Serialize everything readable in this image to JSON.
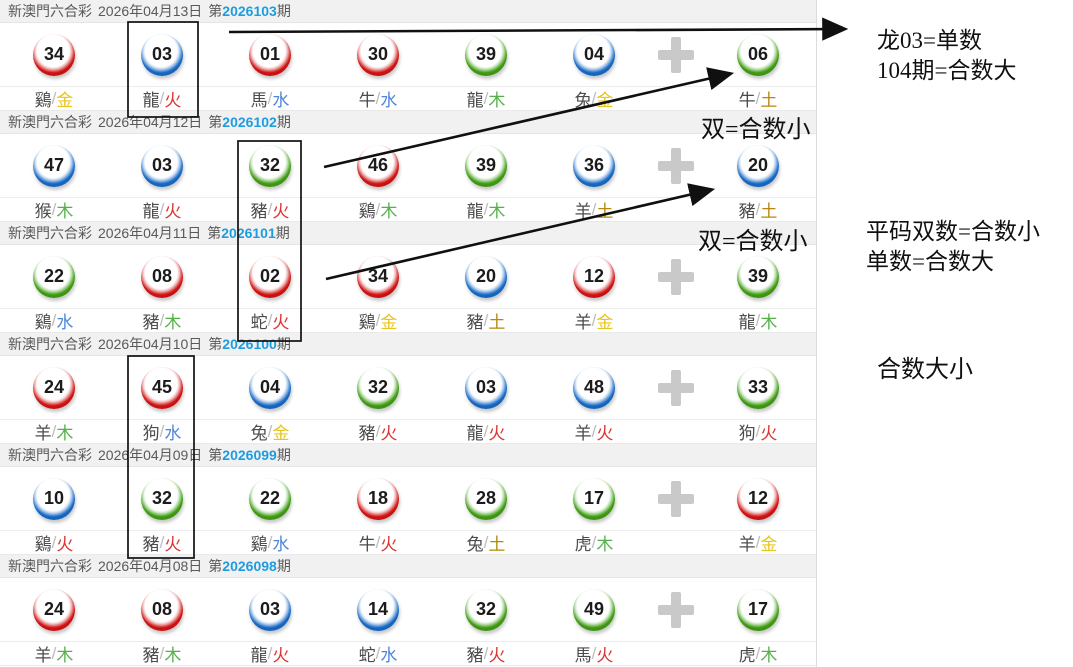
{
  "site": {
    "brand": "新澳門六合彩"
  },
  "labels": {
    "period_pre": "第",
    "period_post": "期",
    "separator": "/"
  },
  "icons": {
    "bonus_separator": "plus-icon"
  },
  "colors": {
    "ball_red": "#d01212",
    "ball_blue": "#1668c4",
    "ball_green": "#3f9a12",
    "period_link": "#1d9ce0",
    "element_gold": "#e8c51c",
    "element_wood": "#55b04b",
    "element_water": "#4f86db",
    "element_fire": "#dd3232",
    "element_earth": "#b8860b",
    "annotation_ink": "#101010"
  },
  "annotations": {
    "a1": "龙03=单数",
    "a2": "104期=合数大",
    "a3": "双=合数小",
    "a4": "双=合数小",
    "a5": "平码双数=合数小",
    "a6": "单数=合数大",
    "a7": "合数大小"
  },
  "draws": [
    {
      "title_prefix": "新澳門六合彩",
      "date": "2026年04月13日",
      "period": "2026103",
      "balls": [
        {
          "num": "34",
          "color": "red",
          "zodiac": "鷄",
          "element": "金"
        },
        {
          "num": "03",
          "color": "blue",
          "zodiac": "龍",
          "element": "火"
        },
        {
          "num": "01",
          "color": "red",
          "zodiac": "馬",
          "element": "水"
        },
        {
          "num": "30",
          "color": "red",
          "zodiac": "牛",
          "element": "水"
        },
        {
          "num": "39",
          "color": "green",
          "zodiac": "龍",
          "element": "木"
        },
        {
          "num": "04",
          "color": "blue",
          "zodiac": "兔",
          "element": "金"
        },
        {
          "num": "06",
          "color": "green",
          "zodiac": "牛",
          "element": "土"
        }
      ]
    },
    {
      "title_prefix": "新澳門六合彩",
      "date": "2026年04月12日",
      "period": "2026102",
      "balls": [
        {
          "num": "47",
          "color": "blue",
          "zodiac": "猴",
          "element": "木"
        },
        {
          "num": "03",
          "color": "blue",
          "zodiac": "龍",
          "element": "火"
        },
        {
          "num": "32",
          "color": "green",
          "zodiac": "豬",
          "element": "火"
        },
        {
          "num": "46",
          "color": "red",
          "zodiac": "鷄",
          "element": "木"
        },
        {
          "num": "39",
          "color": "green",
          "zodiac": "龍",
          "element": "木"
        },
        {
          "num": "36",
          "color": "blue",
          "zodiac": "羊",
          "element": "土"
        },
        {
          "num": "20",
          "color": "blue",
          "zodiac": "豬",
          "element": "土"
        }
      ]
    },
    {
      "title_prefix": "新澳門六合彩",
      "date": "2026年04月11日",
      "period": "2026101",
      "balls": [
        {
          "num": "22",
          "color": "green",
          "zodiac": "鷄",
          "element": "水"
        },
        {
          "num": "08",
          "color": "red",
          "zodiac": "豬",
          "element": "木"
        },
        {
          "num": "02",
          "color": "red",
          "zodiac": "蛇",
          "element": "火"
        },
        {
          "num": "34",
          "color": "red",
          "zodiac": "鷄",
          "element": "金"
        },
        {
          "num": "20",
          "color": "blue",
          "zodiac": "豬",
          "element": "土"
        },
        {
          "num": "12",
          "color": "red",
          "zodiac": "羊",
          "element": "金"
        },
        {
          "num": "39",
          "color": "green",
          "zodiac": "龍",
          "element": "木"
        }
      ]
    },
    {
      "title_prefix": "新澳門六合彩",
      "date": "2026年04月10日",
      "period": "2026100",
      "balls": [
        {
          "num": "24",
          "color": "red",
          "zodiac": "羊",
          "element": "木"
        },
        {
          "num": "45",
          "color": "red",
          "zodiac": "狗",
          "element": "水"
        },
        {
          "num": "04",
          "color": "blue",
          "zodiac": "兔",
          "element": "金"
        },
        {
          "num": "32",
          "color": "green",
          "zodiac": "豬",
          "element": "火"
        },
        {
          "num": "03",
          "color": "blue",
          "zodiac": "龍",
          "element": "火"
        },
        {
          "num": "48",
          "color": "blue",
          "zodiac": "羊",
          "element": "火"
        },
        {
          "num": "33",
          "color": "green",
          "zodiac": "狗",
          "element": "火"
        }
      ]
    },
    {
      "title_prefix": "新澳門六合彩",
      "date": "2026年04月09日",
      "period": "2026099",
      "balls": [
        {
          "num": "10",
          "color": "blue",
          "zodiac": "鷄",
          "element": "火"
        },
        {
          "num": "32",
          "color": "green",
          "zodiac": "豬",
          "element": "火"
        },
        {
          "num": "22",
          "color": "green",
          "zodiac": "鷄",
          "element": "水"
        },
        {
          "num": "18",
          "color": "red",
          "zodiac": "牛",
          "element": "火"
        },
        {
          "num": "28",
          "color": "green",
          "zodiac": "兔",
          "element": "土"
        },
        {
          "num": "17",
          "color": "green",
          "zodiac": "虎",
          "element": "木"
        },
        {
          "num": "12",
          "color": "red",
          "zodiac": "羊",
          "element": "金"
        }
      ]
    },
    {
      "title_prefix": "新澳門六合彩",
      "date": "2026年04月08日",
      "period": "2026098",
      "balls": [
        {
          "num": "24",
          "color": "red",
          "zodiac": "羊",
          "element": "木"
        },
        {
          "num": "08",
          "color": "red",
          "zodiac": "豬",
          "element": "木"
        },
        {
          "num": "03",
          "color": "blue",
          "zodiac": "龍",
          "element": "火"
        },
        {
          "num": "14",
          "color": "blue",
          "zodiac": "蛇",
          "element": "水"
        },
        {
          "num": "32",
          "color": "green",
          "zodiac": "豬",
          "element": "火"
        },
        {
          "num": "49",
          "color": "green",
          "zodiac": "馬",
          "element": "火"
        },
        {
          "num": "17",
          "color": "green",
          "zodiac": "虎",
          "element": "木"
        }
      ]
    }
  ]
}
